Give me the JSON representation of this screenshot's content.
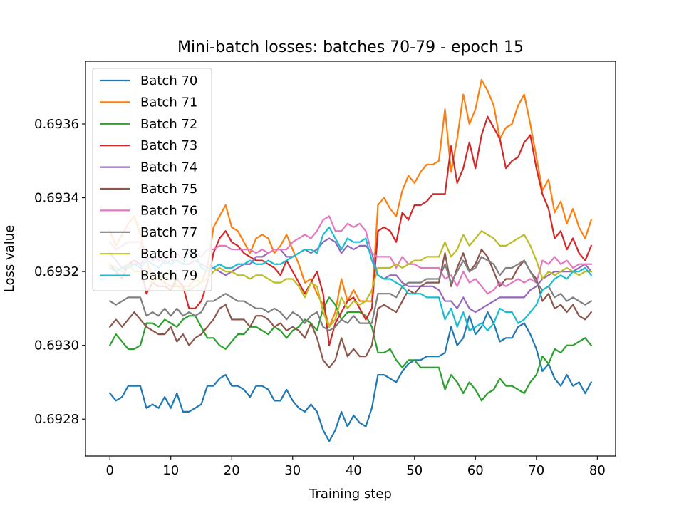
{
  "chart_data": {
    "type": "line",
    "title": "Mini-batch losses: batches 70-79 - epoch 15",
    "xlabel": "Training step",
    "ylabel": "Loss value",
    "xlim": [
      -4,
      83
    ],
    "ylim": [
      0.6927,
      0.69377
    ],
    "xticks": [
      0,
      10,
      20,
      30,
      40,
      50,
      60,
      70,
      80
    ],
    "xtick_labels": [
      "0",
      "10",
      "20",
      "30",
      "40",
      "50",
      "60",
      "70",
      "80"
    ],
    "yticks": [
      0.6928,
      0.693,
      0.6932,
      0.6934,
      0.6936
    ],
    "ytick_labels": [
      "0.6928",
      "0.6930",
      "0.6932",
      "0.6934",
      "0.6936"
    ],
    "grid": false,
    "legend_position": "top-left",
    "x": [
      0,
      1,
      2,
      3,
      4,
      5,
      6,
      7,
      8,
      9,
      10,
      11,
      12,
      13,
      14,
      15,
      16,
      17,
      18,
      19,
      20,
      21,
      22,
      23,
      24,
      25,
      26,
      27,
      28,
      29,
      30,
      31,
      32,
      33,
      34,
      35,
      36,
      37,
      38,
      39,
      40,
      41,
      42,
      43,
      44,
      45,
      46,
      47,
      48,
      49,
      50,
      51,
      52,
      53,
      54,
      55,
      56,
      57,
      58,
      59,
      60,
      61,
      62,
      63,
      64,
      65,
      66,
      67,
      68,
      69,
      70,
      71,
      72,
      73,
      74,
      75,
      76,
      77,
      78,
      79
    ],
    "series": [
      {
        "name": "Batch 70",
        "color": "#1f77b4",
        "values": [
          0.69287,
          0.69285,
          0.69286,
          0.69289,
          0.69289,
          0.69289,
          0.69283,
          0.69284,
          0.69283,
          0.69286,
          0.69283,
          0.69287,
          0.69282,
          0.69282,
          0.69283,
          0.69284,
          0.69289,
          0.69289,
          0.69291,
          0.69292,
          0.69289,
          0.69289,
          0.69288,
          0.69286,
          0.69289,
          0.69289,
          0.69288,
          0.69285,
          0.69285,
          0.69288,
          0.69285,
          0.69283,
          0.69282,
          0.69284,
          0.69282,
          0.69277,
          0.69274,
          0.69277,
          0.69282,
          0.69278,
          0.69281,
          0.69279,
          0.69278,
          0.69283,
          0.69292,
          0.69292,
          0.69291,
          0.6929,
          0.69293,
          0.69295,
          0.69296,
          0.69296,
          0.69297,
          0.69297,
          0.69297,
          0.69298,
          0.69305,
          0.693,
          0.69302,
          0.69308,
          0.69303,
          0.69305,
          0.69309,
          0.69306,
          0.69301,
          0.69302,
          0.69302,
          0.69305,
          0.69306,
          0.69303,
          0.69299,
          0.69293,
          0.69295,
          0.69291,
          0.69289,
          0.69292,
          0.69289,
          0.6929,
          0.69287,
          0.6929
        ]
      },
      {
        "name": "Batch 71",
        "color": "#ff7f0e",
        "values": [
          0.69331,
          0.69327,
          0.6933,
          0.69333,
          0.69335,
          0.6933,
          0.69323,
          0.69318,
          0.69318,
          0.69317,
          0.69316,
          0.69316,
          0.69316,
          0.69316,
          0.69318,
          0.69317,
          0.69321,
          0.69332,
          0.69335,
          0.69338,
          0.69332,
          0.69331,
          0.69328,
          0.69325,
          0.69329,
          0.6933,
          0.69329,
          0.69325,
          0.69327,
          0.6933,
          0.69326,
          0.69322,
          0.69317,
          0.69318,
          0.69314,
          0.69311,
          0.69305,
          0.69309,
          0.69318,
          0.69312,
          0.69315,
          0.69312,
          0.69312,
          0.69312,
          0.69338,
          0.6934,
          0.69337,
          0.69335,
          0.69342,
          0.69346,
          0.69344,
          0.69347,
          0.69349,
          0.69349,
          0.6935,
          0.69364,
          0.69347,
          0.69356,
          0.69368,
          0.6936,
          0.69364,
          0.69372,
          0.69369,
          0.69365,
          0.69356,
          0.69359,
          0.6936,
          0.69365,
          0.69368,
          0.6936,
          0.69351,
          0.69342,
          0.69345,
          0.69336,
          0.69339,
          0.69333,
          0.69337,
          0.69332,
          0.69329,
          0.69334
        ]
      },
      {
        "name": "Batch 72",
        "color": "#2ca02c",
        "values": [
          0.693,
          0.69303,
          0.69301,
          0.69299,
          0.69299,
          0.693,
          0.69306,
          0.69306,
          0.69305,
          0.69307,
          0.69306,
          0.69305,
          0.69307,
          0.69308,
          0.69308,
          0.69305,
          0.69302,
          0.69302,
          0.693,
          0.69299,
          0.69301,
          0.69303,
          0.69303,
          0.69305,
          0.69305,
          0.69304,
          0.69303,
          0.69305,
          0.69304,
          0.69302,
          0.69304,
          0.69305,
          0.69307,
          0.69306,
          0.69304,
          0.6931,
          0.69313,
          0.69311,
          0.69307,
          0.69309,
          0.69309,
          0.69309,
          0.69308,
          0.69305,
          0.69298,
          0.69298,
          0.69299,
          0.69296,
          0.69294,
          0.69296,
          0.69296,
          0.69294,
          0.69294,
          0.69294,
          0.69294,
          0.69288,
          0.69292,
          0.6929,
          0.69287,
          0.6929,
          0.69288,
          0.69285,
          0.69287,
          0.69288,
          0.69291,
          0.69289,
          0.69289,
          0.69288,
          0.69287,
          0.6929,
          0.69292,
          0.69297,
          0.69295,
          0.69299,
          0.69298,
          0.693,
          0.693,
          0.69301,
          0.69302,
          0.693
        ]
      },
      {
        "name": "Batch 73",
        "color": "#d62728",
        "values": [
          0.69322,
          0.6932,
          0.69318,
          0.69322,
          0.69323,
          0.69322,
          0.69314,
          0.69317,
          0.69316,
          0.69316,
          0.69315,
          0.69318,
          0.69316,
          0.6931,
          0.6931,
          0.69312,
          0.69317,
          0.69325,
          0.69329,
          0.69331,
          0.69328,
          0.69327,
          0.69325,
          0.69324,
          0.69323,
          0.69323,
          0.69322,
          0.69321,
          0.69319,
          0.69323,
          0.6932,
          0.69317,
          0.69314,
          0.69317,
          0.6932,
          0.69314,
          0.693,
          0.69306,
          0.69309,
          0.69312,
          0.69313,
          0.6931,
          0.69307,
          0.6931,
          0.69331,
          0.69332,
          0.69331,
          0.69328,
          0.69336,
          0.69334,
          0.69338,
          0.69338,
          0.69339,
          0.69341,
          0.69341,
          0.69341,
          0.69354,
          0.69344,
          0.69348,
          0.69355,
          0.69348,
          0.69357,
          0.69362,
          0.69359,
          0.69356,
          0.69348,
          0.6935,
          0.69351,
          0.69355,
          0.69357,
          0.69348,
          0.69341,
          0.69337,
          0.69329,
          0.69331,
          0.69326,
          0.69329,
          0.69325,
          0.69323,
          0.69327
        ]
      },
      {
        "name": "Batch 74",
        "color": "#9467bd",
        "values": [
          0.69325,
          0.69323,
          0.69321,
          0.69322,
          0.69322,
          0.69322,
          0.69324,
          0.69323,
          0.69324,
          0.69322,
          0.69323,
          0.69323,
          0.69322,
          0.69322,
          0.69323,
          0.69322,
          0.69321,
          0.69321,
          0.6932,
          0.69319,
          0.6932,
          0.69321,
          0.69322,
          0.69322,
          0.69324,
          0.69324,
          0.69325,
          0.69326,
          0.69326,
          0.69324,
          0.69324,
          0.69325,
          0.69326,
          0.69325,
          0.69326,
          0.69328,
          0.69329,
          0.69328,
          0.69325,
          0.69327,
          0.69326,
          0.69327,
          0.69327,
          0.69325,
          0.69319,
          0.69318,
          0.69319,
          0.69319,
          0.69317,
          0.69316,
          0.69316,
          0.69316,
          0.69316,
          0.69316,
          0.69315,
          0.69312,
          0.69312,
          0.6931,
          0.69313,
          0.6931,
          0.69309,
          0.6931,
          0.69311,
          0.69312,
          0.69313,
          0.69313,
          0.69313,
          0.69313,
          0.69313,
          0.69315,
          0.69316,
          0.69318,
          0.69319,
          0.6932,
          0.6932,
          0.6932,
          0.6932,
          0.69321,
          0.69322,
          0.6932
        ]
      },
      {
        "name": "Batch 75",
        "color": "#8c564b",
        "values": [
          0.69305,
          0.69307,
          0.69305,
          0.69307,
          0.69309,
          0.69307,
          0.69305,
          0.69304,
          0.69303,
          0.69303,
          0.69305,
          0.69301,
          0.69303,
          0.693,
          0.69302,
          0.69303,
          0.69305,
          0.69307,
          0.6931,
          0.69311,
          0.69307,
          0.69307,
          0.69307,
          0.69305,
          0.69308,
          0.69308,
          0.69307,
          0.69305,
          0.69306,
          0.69304,
          0.69305,
          0.69304,
          0.69302,
          0.69306,
          0.69302,
          0.69296,
          0.69294,
          0.69296,
          0.69302,
          0.69297,
          0.69299,
          0.69297,
          0.69297,
          0.693,
          0.6931,
          0.69311,
          0.6931,
          0.69309,
          0.69312,
          0.69315,
          0.69314,
          0.69316,
          0.69317,
          0.69317,
          0.69317,
          0.69325,
          0.69316,
          0.69321,
          0.69325,
          0.6932,
          0.69322,
          0.69326,
          0.69324,
          0.6932,
          0.69316,
          0.69318,
          0.69318,
          0.69321,
          0.69323,
          0.6932,
          0.69318,
          0.69312,
          0.69314,
          0.6931,
          0.69311,
          0.69309,
          0.69311,
          0.69308,
          0.69307,
          0.69309
        ]
      },
      {
        "name": "Batch 76",
        "color": "#e377c2",
        "values": [
          0.69328,
          0.69326,
          0.69327,
          0.69328,
          0.69328,
          0.69328,
          0.69323,
          0.69324,
          0.69323,
          0.69325,
          0.69323,
          0.69325,
          0.69323,
          0.69325,
          0.69325,
          0.69324,
          0.69326,
          0.69326,
          0.69327,
          0.69327,
          0.69326,
          0.69326,
          0.69326,
          0.69326,
          0.69325,
          0.69326,
          0.69325,
          0.69326,
          0.69326,
          0.69326,
          0.69328,
          0.69329,
          0.6933,
          0.69329,
          0.69331,
          0.69334,
          0.69335,
          0.69331,
          0.69331,
          0.69333,
          0.69332,
          0.69333,
          0.69331,
          0.69325,
          0.69324,
          0.69324,
          0.69324,
          0.69321,
          0.69324,
          0.69322,
          0.69322,
          0.69321,
          0.69321,
          0.69321,
          0.69321,
          0.69318,
          0.69319,
          0.69316,
          0.6932,
          0.69317,
          0.69318,
          0.69316,
          0.69314,
          0.69315,
          0.69317,
          0.69316,
          0.69317,
          0.69318,
          0.69317,
          0.69318,
          0.69317,
          0.69323,
          0.69322,
          0.69324,
          0.69322,
          0.69323,
          0.69321,
          0.69322,
          0.69322,
          0.69322
        ]
      },
      {
        "name": "Batch 77",
        "color": "#7f7f7f",
        "values": [
          0.69312,
          0.69311,
          0.69312,
          0.69313,
          0.69313,
          0.69313,
          0.69308,
          0.69309,
          0.69308,
          0.6931,
          0.69308,
          0.6931,
          0.69308,
          0.69309,
          0.69308,
          0.69309,
          0.69312,
          0.69312,
          0.69313,
          0.69314,
          0.69313,
          0.69312,
          0.69312,
          0.69311,
          0.6931,
          0.6931,
          0.69309,
          0.6931,
          0.69309,
          0.69307,
          0.69309,
          0.69308,
          0.69306,
          0.69308,
          0.69309,
          0.69305,
          0.69304,
          0.69305,
          0.69307,
          0.69306,
          0.69308,
          0.69306,
          0.69306,
          0.69306,
          0.69314,
          0.69314,
          0.69314,
          0.69313,
          0.69316,
          0.69317,
          0.69317,
          0.69317,
          0.69318,
          0.69318,
          0.69318,
          0.69322,
          0.69317,
          0.6932,
          0.69323,
          0.6932,
          0.69321,
          0.69324,
          0.69323,
          0.69322,
          0.69319,
          0.69321,
          0.69321,
          0.69322,
          0.69323,
          0.6932,
          0.69317,
          0.69315,
          0.69316,
          0.69313,
          0.69314,
          0.69312,
          0.69313,
          0.69312,
          0.69311,
          0.69312
        ]
      },
      {
        "name": "Batch 78",
        "color": "#bcbd22",
        "values": [
          0.69322,
          0.69321,
          0.6932,
          0.69322,
          0.6932,
          0.6932,
          0.69318,
          0.69317,
          0.69319,
          0.69318,
          0.6932,
          0.69316,
          0.69315,
          0.69315,
          0.69316,
          0.69317,
          0.69318,
          0.6932,
          0.69321,
          0.6932,
          0.6932,
          0.69319,
          0.69319,
          0.69318,
          0.69319,
          0.69319,
          0.69318,
          0.69317,
          0.69317,
          0.69318,
          0.69318,
          0.69316,
          0.69313,
          0.69317,
          0.69316,
          0.69309,
          0.69305,
          0.69307,
          0.69313,
          0.6931,
          0.69312,
          0.69311,
          0.69312,
          0.69315,
          0.69321,
          0.69321,
          0.69321,
          0.69322,
          0.69321,
          0.69322,
          0.69323,
          0.69323,
          0.69324,
          0.69324,
          0.69324,
          0.69328,
          0.69324,
          0.69326,
          0.6933,
          0.69327,
          0.69329,
          0.69331,
          0.6933,
          0.69329,
          0.69327,
          0.69327,
          0.69328,
          0.69329,
          0.6933,
          0.69327,
          0.69323,
          0.69318,
          0.6932,
          0.69319,
          0.6932,
          0.69321,
          0.6932,
          0.69319,
          0.6932,
          0.6932
        ]
      },
      {
        "name": "Batch 79",
        "color": "#17becf",
        "values": [
          0.69321,
          0.6932,
          0.69321,
          0.69321,
          0.69322,
          0.69321,
          0.69323,
          0.69322,
          0.69321,
          0.69323,
          0.69322,
          0.69323,
          0.69322,
          0.69326,
          0.69325,
          0.69321,
          0.6932,
          0.69321,
          0.69322,
          0.69321,
          0.69321,
          0.69322,
          0.69322,
          0.69323,
          0.69322,
          0.69322,
          0.69323,
          0.69322,
          0.69322,
          0.69323,
          0.69324,
          0.69325,
          0.69326,
          0.69326,
          0.69325,
          0.6933,
          0.69332,
          0.69329,
          0.69326,
          0.69329,
          0.69328,
          0.69328,
          0.69329,
          0.69323,
          0.69319,
          0.69318,
          0.69318,
          0.69317,
          0.69316,
          0.69314,
          0.69314,
          0.69314,
          0.69313,
          0.69313,
          0.69313,
          0.69307,
          0.6931,
          0.69305,
          0.69309,
          0.69304,
          0.69305,
          0.69306,
          0.69304,
          0.69306,
          0.6931,
          0.69309,
          0.69309,
          0.69306,
          0.69307,
          0.69309,
          0.69311,
          0.69315,
          0.69316,
          0.69318,
          0.69319,
          0.69318,
          0.6932,
          0.6932,
          0.69321,
          0.69319
        ]
      }
    ]
  }
}
